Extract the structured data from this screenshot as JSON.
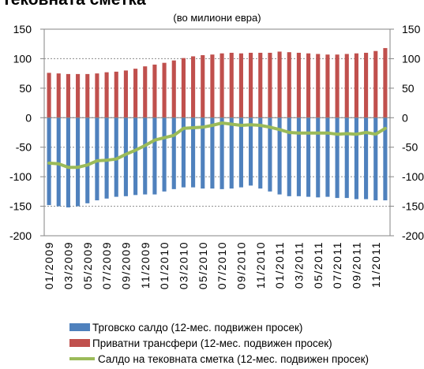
{
  "page_title": "Тековната сметка",
  "chart_data": {
    "type": "bar",
    "unit_label": "(во милиони евра)",
    "ylim": [
      -200,
      150
    ],
    "yticks": [
      150,
      100,
      50,
      0,
      -50,
      -100,
      -150,
      -200
    ],
    "grid": true,
    "legend_position": "bottom",
    "months": [
      "01/2009",
      "02/2009",
      "03/2009",
      "04/2009",
      "05/2009",
      "06/2009",
      "07/2009",
      "08/2009",
      "09/2009",
      "10/2009",
      "11/2009",
      "12/2009",
      "01/2010",
      "02/2010",
      "03/2010",
      "04/2010",
      "05/2010",
      "06/2010",
      "07/2010",
      "08/2010",
      "09/2010",
      "10/2010",
      "11/2010",
      "12/2010",
      "01/2011",
      "02/2011",
      "03/2011",
      "04/2011",
      "05/2011",
      "06/2011",
      "07/2011",
      "08/2011",
      "09/2011",
      "10/2011",
      "11/2011",
      "12/2011"
    ],
    "x_tick_labels": [
      "01/2009",
      "03/2009",
      "05/2009",
      "07/2009",
      "09/2009",
      "11/2009",
      "01/2010",
      "03/2010",
      "05/2010",
      "07/2010",
      "09/2010",
      "11/2010",
      "01/2011",
      "03/2011",
      "05/2011",
      "07/2011",
      "09/2011",
      "11/2011"
    ],
    "series": [
      {
        "name": "Трговско салдо (12-мес. подвижен просек)",
        "kind": "bar",
        "color": "#4F81BD",
        "values": [
          -148,
          -150,
          -152,
          -150,
          -145,
          -140,
          -137,
          -134,
          -133,
          -131,
          -130,
          -130,
          -125,
          -121,
          -118,
          -118,
          -120,
          -120,
          -121,
          -120,
          -118,
          -115,
          -120,
          -125,
          -130,
          -133,
          -133,
          -134,
          -135,
          -134,
          -136,
          -136,
          -138,
          -138,
          -140,
          -140
        ]
      },
      {
        "name": "Приватни трансфери (12-мес. подвижен просек)",
        "kind": "bar",
        "color": "#C0504D",
        "values": [
          76,
          75,
          74,
          74,
          74,
          75,
          77,
          78,
          80,
          83,
          87,
          90,
          93,
          97,
          101,
          104,
          106,
          107,
          109,
          110,
          109,
          110,
          110,
          110,
          112,
          111,
          110,
          109,
          108,
          107,
          107,
          108,
          109,
          110,
          113,
          118
        ]
      },
      {
        "name": "Салдо на тековната сметка (12-мес. подвижен просек)",
        "kind": "line",
        "color": "#9BBB59",
        "values": [
          -77,
          -78,
          -84,
          -84,
          -80,
          -73,
          -72,
          -70,
          -62,
          -55,
          -47,
          -38,
          -34,
          -30,
          -18,
          -17,
          -16,
          -13,
          -9,
          -11,
          -13,
          -12,
          -13,
          -16,
          -20,
          -25,
          -26,
          -26,
          -26,
          -26,
          -28,
          -27,
          -28,
          -25,
          -28,
          -18
        ]
      }
    ]
  }
}
